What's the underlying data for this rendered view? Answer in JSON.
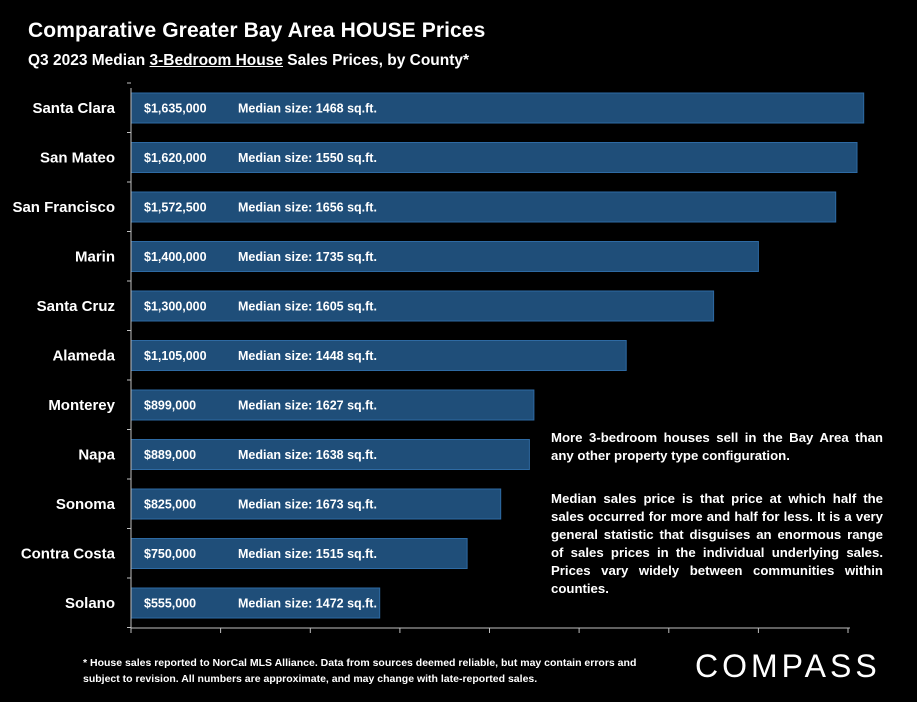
{
  "header": {
    "title": "Comparative Greater Bay Area HOUSE Prices",
    "subtitle_pre": "Q3 2023 Median ",
    "subtitle_ul": "3-Bedroom House",
    "subtitle_post": " Sales Prices, by County*"
  },
  "chart_data": {
    "type": "bar",
    "orientation": "horizontal",
    "title": "Comparative Greater Bay Area HOUSE Prices",
    "subtitle": "Q3 2023 Median 3-Bedroom House Sales Prices, by County*",
    "categories": [
      "Santa Clara",
      "San Mateo",
      "San Francisco",
      "Marin",
      "Santa Cruz",
      "Alameda",
      "Monterey",
      "Napa",
      "Sonoma",
      "Contra Costa",
      "Solano"
    ],
    "values": [
      1635000,
      1620000,
      1572500,
      1400000,
      1300000,
      1105000,
      899000,
      889000,
      825000,
      750000,
      555000
    ],
    "value_labels": [
      "$1,635,000",
      "$1,620,000",
      "$1,572,500",
      "$1,400,000",
      "$1,300,000",
      "$1,105,000",
      "$899,000",
      "$889,000",
      "$825,000",
      "$750,000",
      "$555,000"
    ],
    "size_labels": [
      "Median size: 1468 sq.ft.",
      "Median size: 1550 sq.ft.",
      "Median size: 1656 sq.ft.",
      "Median size: 1735 sq.ft.",
      "Median size: 1605 sq.ft.",
      "Median size: 1448 sq.ft.",
      "Median size: 1627 sq.ft.",
      "Median size: 1638 sq.ft.",
      "Median size: 1673 sq.ft.",
      "Median size: 1515 sq.ft.",
      "Median size: 1472 sq.ft."
    ],
    "xlim": [
      0,
      1600000
    ],
    "tick_count": 9,
    "grid": false,
    "legend": "none",
    "bar_color": "#1f4e79",
    "bar_border": "#2e6aa3"
  },
  "notes": {
    "p1": "More 3-bedroom houses sell in the Bay Area than any other property type configuration.",
    "p2": "Median sales price is that price at which half the sales occurred for more and half for less. It is a very general statistic that disguises an enormous range of sales prices in the individual underlying sales. Prices vary widely between communities within counties."
  },
  "footer": {
    "footnote": "* House sales reported to NorCal MLS Alliance. Data from sources deemed reliable, but may contain errors and subject to revision. All numbers are approximate, and may change with late-reported sales.",
    "logo": "COMPASS"
  }
}
